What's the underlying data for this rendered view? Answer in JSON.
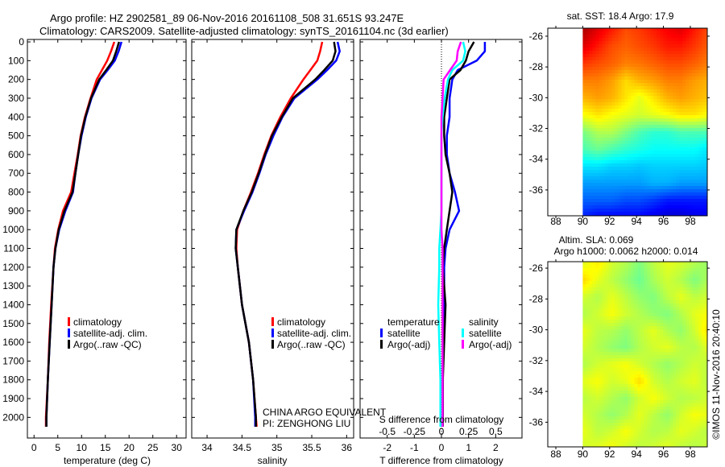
{
  "title": {
    "line1": "Argo profile: HZ 2902581_89 06-Nov-2016 20161108_508 31.651S 93.247E",
    "line2": "Climatology: CARS2009. Satellite-adjusted climatology: synTS_20161104.nc (3d earlier)"
  },
  "annotation": {
    "line1": "CHINA ARGO EQUIVALENT",
    "line2": "PI: ZENGHONG LIU"
  },
  "credit": "©IMOS 11-Nov-2016 20:40:10",
  "colors": {
    "climatology": "#ff0000",
    "satellite": "#0000ff",
    "argo": "#000000",
    "sal_satellite": "#00ffff",
    "sal_argo": "#ff00ff"
  },
  "chart_data": [
    {
      "type": "line",
      "name": "temperature",
      "xlabel": "temperature (deg C)",
      "ylabel": "",
      "xticks": [
        0,
        5,
        10,
        15,
        20,
        25,
        30
      ],
      "yticks": [
        0,
        100,
        200,
        300,
        400,
        500,
        600,
        700,
        800,
        900,
        1000,
        1100,
        1200,
        1300,
        1400,
        1500,
        1600,
        1700,
        1800,
        1900,
        2000
      ],
      "xlim": [
        -1.4,
        32
      ],
      "ylim": [
        2110,
        -13
      ],
      "legend": [
        "climatology",
        "satellite-adj. clim.",
        "Argo(..raw -QC)"
      ],
      "depth": [
        0,
        50,
        100,
        150,
        200,
        300,
        400,
        500,
        600,
        700,
        800,
        900,
        1000,
        1100,
        1200,
        1400,
        1600,
        1800,
        2000,
        2050
      ],
      "series": [
        {
          "name": "climatology",
          "values": [
            16.9,
            16.2,
            15.4,
            14.3,
            13.2,
            11.9,
            10.7,
            9.8,
            9.2,
            8.5,
            7.8,
            6.1,
            5.1,
            4.4,
            4.1,
            3.6,
            3.2,
            2.9,
            2.5,
            2.5
          ]
        },
        {
          "name": "satellite-adj. clim.",
          "values": [
            18.4,
            17.8,
            17.0,
            15.5,
            13.9,
            12.1,
            10.9,
            10.0,
            9.3,
            8.7,
            8.2,
            6.6,
            5.3,
            4.5,
            4.1,
            3.7,
            3.3,
            2.9,
            2.6,
            2.6
          ]
        },
        {
          "name": "Argo(..raw -QC)",
          "values": [
            17.9,
            17.3,
            16.6,
            15.2,
            13.7,
            12.0,
            10.8,
            9.9,
            9.3,
            8.7,
            8.1,
            6.4,
            5.2,
            4.5,
            4.1,
            3.7,
            3.3,
            2.9,
            2.6,
            2.6
          ]
        }
      ]
    },
    {
      "type": "line",
      "name": "salinity",
      "xlabel": "salinity",
      "xticks": [
        34,
        34.5,
        35,
        35.5,
        36
      ],
      "xlim": [
        33.78,
        36.1
      ],
      "ylim": [
        2110,
        -13
      ],
      "legend": [
        "climatology",
        "satellite-adj. clim.",
        "Argo(..raw -QC)"
      ],
      "depth": [
        0,
        50,
        100,
        150,
        200,
        300,
        400,
        500,
        600,
        700,
        800,
        900,
        1000,
        1100,
        1200,
        1400,
        1600,
        1800,
        2000,
        2050
      ],
      "series": [
        {
          "name": "climatology",
          "values": [
            35.65,
            35.62,
            35.58,
            35.48,
            35.38,
            35.2,
            35.05,
            34.92,
            34.82,
            34.73,
            34.63,
            34.52,
            34.43,
            34.42,
            34.44,
            34.5,
            34.6,
            34.66,
            34.7,
            34.71
          ]
        },
        {
          "name": "satellite-adj. clim.",
          "values": [
            35.87,
            35.9,
            35.85,
            35.72,
            35.58,
            35.25,
            35.08,
            34.95,
            34.84,
            34.75,
            34.65,
            34.53,
            34.42,
            34.41,
            34.44,
            34.5,
            34.6,
            34.66,
            34.69,
            34.69
          ]
        },
        {
          "name": "Argo(..raw -QC)",
          "values": [
            35.82,
            35.84,
            35.8,
            35.68,
            35.55,
            35.23,
            35.07,
            34.93,
            34.83,
            34.74,
            34.64,
            34.52,
            34.42,
            34.41,
            34.44,
            34.5,
            34.6,
            34.66,
            34.7,
            34.7
          ]
        }
      ]
    },
    {
      "type": "line",
      "name": "difference",
      "xlabel": "T difference from climatology",
      "x2label": "S difference from climatology",
      "xticks": [
        -2,
        -1,
        0,
        1,
        2
      ],
      "x2ticks": [
        -0.5,
        -0.25,
        0,
        0.25,
        0.5
      ],
      "x2ticklabels": [
        "-0.5",
        "-0.25",
        "0",
        "0.25",
        "0.5"
      ],
      "xlim": [
        -3.0,
        2.97
      ],
      "ylim": [
        2110,
        -13
      ],
      "legend_titles": [
        "temperature",
        "salinity"
      ],
      "legend": [
        "satellite",
        "Argo(-adj)",
        "satellite",
        "Argo(-adj)"
      ],
      "depth": [
        0,
        50,
        100,
        150,
        200,
        300,
        400,
        500,
        600,
        700,
        800,
        900,
        1000,
        1100,
        1200,
        1400,
        1600,
        1800,
        2000,
        2050
      ],
      "series": [
        {
          "name": "T satellite",
          "quantity": "T",
          "values": [
            1.6,
            1.6,
            1.3,
            0.6,
            0.4,
            0.3,
            0.3,
            0.2,
            0.2,
            0.3,
            0.5,
            0.65,
            0.3,
            0.15,
            0.1,
            0.1,
            0.05,
            0.05,
            0.05,
            0.05
          ]
        },
        {
          "name": "T Argo(-adj)",
          "quantity": "T",
          "values": [
            1.2,
            1.0,
            0.9,
            0.7,
            0.3,
            0.2,
            0.1,
            0.1,
            0.15,
            0.3,
            0.4,
            0.3,
            0.2,
            0.1,
            0.05,
            0.15,
            0.1,
            0.05,
            0.05,
            0.05
          ]
        },
        {
          "name": "S satellite",
          "quantity": "S",
          "values": [
            0.2,
            0.22,
            0.2,
            0.1,
            0.06,
            0.03,
            0.01,
            0.0,
            0.0,
            0.0,
            0.0,
            0.0,
            -0.01,
            -0.02,
            -0.02,
            -0.03,
            -0.02,
            -0.01,
            -0.01,
            -0.01
          ]
        },
        {
          "name": "S Argo(-adj)",
          "quantity": "S",
          "values": [
            0.18,
            0.15,
            0.14,
            0.08,
            0.02,
            0.01,
            0.0,
            0.0,
            0.0,
            0.0,
            0.0,
            0.0,
            0.0,
            0.01,
            0.01,
            0.01,
            0.01,
            0.01,
            0.01,
            0.01
          ]
        }
      ]
    },
    {
      "type": "heatmap",
      "name": "sst-map",
      "title": "sat. SST: 18.4 Argo: 17.9",
      "xticks": [
        88,
        90,
        92,
        94,
        96,
        98
      ],
      "yticks": [
        -26,
        -28,
        -30,
        -32,
        -34,
        -36
      ],
      "xlim": [
        87.4,
        99.26
      ],
      "ylim": [
        -37.68,
        -25.48
      ],
      "data_lon_range": [
        90,
        99.26
      ],
      "colormap": "jet",
      "grid": [
        [
          0.95,
          0.9,
          0.85,
          0.8,
          0.82,
          0.85,
          0.88,
          0.9,
          0.85,
          0.8
        ],
        [
          0.9,
          0.85,
          0.8,
          0.78,
          0.8,
          0.82,
          0.85,
          0.85,
          0.82,
          0.78
        ],
        [
          0.82,
          0.8,
          0.78,
          0.75,
          0.76,
          0.78,
          0.8,
          0.8,
          0.78,
          0.75
        ],
        [
          0.75,
          0.75,
          0.72,
          0.66,
          0.7,
          0.72,
          0.75,
          0.75,
          0.72,
          0.7
        ],
        [
          0.7,
          0.72,
          0.7,
          0.65,
          0.6,
          0.65,
          0.7,
          0.72,
          0.7,
          0.68
        ],
        [
          0.62,
          0.65,
          0.62,
          0.6,
          0.58,
          0.6,
          0.62,
          0.65,
          0.65,
          0.62
        ],
        [
          0.5,
          0.55,
          0.55,
          0.5,
          0.45,
          0.42,
          0.42,
          0.45,
          0.45,
          0.45
        ],
        [
          0.45,
          0.48,
          0.45,
          0.42,
          0.4,
          0.38,
          0.38,
          0.38,
          0.38,
          0.35
        ],
        [
          0.35,
          0.35,
          0.33,
          0.33,
          0.32,
          0.33,
          0.33,
          0.33,
          0.33,
          0.32
        ],
        [
          0.28,
          0.28,
          0.28,
          0.28,
          0.28,
          0.3,
          0.3,
          0.28,
          0.28,
          0.28
        ],
        [
          0.22,
          0.22,
          0.22,
          0.2,
          0.2,
          0.18,
          0.15,
          0.15,
          0.15,
          0.15
        ],
        [
          0.15,
          0.12,
          0.12,
          0.12,
          0.12,
          0.1,
          0.08,
          0.08,
          0.1,
          0.1
        ]
      ]
    },
    {
      "type": "heatmap",
      "name": "sla-map",
      "title": "Altim. SLA: 0.069",
      "subtitle": "Argo h1000: 0.0062 h2000: 0.014",
      "xticks": [
        88,
        90,
        92,
        94,
        96,
        98
      ],
      "yticks": [
        -26,
        -28,
        -30,
        -32,
        -34,
        -36
      ],
      "xlim": [
        87.4,
        99.26
      ],
      "ylim": [
        -37.6,
        -25.58
      ],
      "data_lon_range": [
        90,
        99.26
      ],
      "colormap": "jet",
      "grid": [
        [
          0.6,
          0.64,
          0.58,
          0.55,
          0.5,
          0.56,
          0.6,
          0.58,
          0.55,
          0.52
        ],
        [
          0.66,
          0.6,
          0.56,
          0.52,
          0.48,
          0.54,
          0.58,
          0.55,
          0.5,
          0.55
        ],
        [
          0.58,
          0.55,
          0.6,
          0.56,
          0.52,
          0.5,
          0.56,
          0.6,
          0.56,
          0.58
        ],
        [
          0.55,
          0.58,
          0.62,
          0.58,
          0.55,
          0.52,
          0.5,
          0.55,
          0.6,
          0.62
        ],
        [
          0.6,
          0.56,
          0.55,
          0.52,
          0.56,
          0.6,
          0.55,
          0.52,
          0.58,
          0.66
        ],
        [
          0.58,
          0.55,
          0.52,
          0.5,
          0.55,
          0.58,
          0.6,
          0.56,
          0.55,
          0.6
        ],
        [
          0.55,
          0.58,
          0.6,
          0.62,
          0.58,
          0.55,
          0.52,
          0.55,
          0.58,
          0.56
        ],
        [
          0.6,
          0.62,
          0.58,
          0.6,
          0.66,
          0.58,
          0.55,
          0.58,
          0.6,
          0.55
        ],
        [
          0.56,
          0.58,
          0.55,
          0.52,
          0.58,
          0.62,
          0.58,
          0.55,
          0.56,
          0.58
        ],
        [
          0.58,
          0.55,
          0.52,
          0.55,
          0.6,
          0.56,
          0.52,
          0.58,
          0.62,
          0.6
        ],
        [
          0.6,
          0.56,
          0.58,
          0.62,
          0.58,
          0.55,
          0.56,
          0.6,
          0.58,
          0.55
        ],
        [
          0.58,
          0.6,
          0.62,
          0.58,
          0.56,
          0.58,
          0.6,
          0.56,
          0.55,
          0.58
        ]
      ]
    }
  ]
}
